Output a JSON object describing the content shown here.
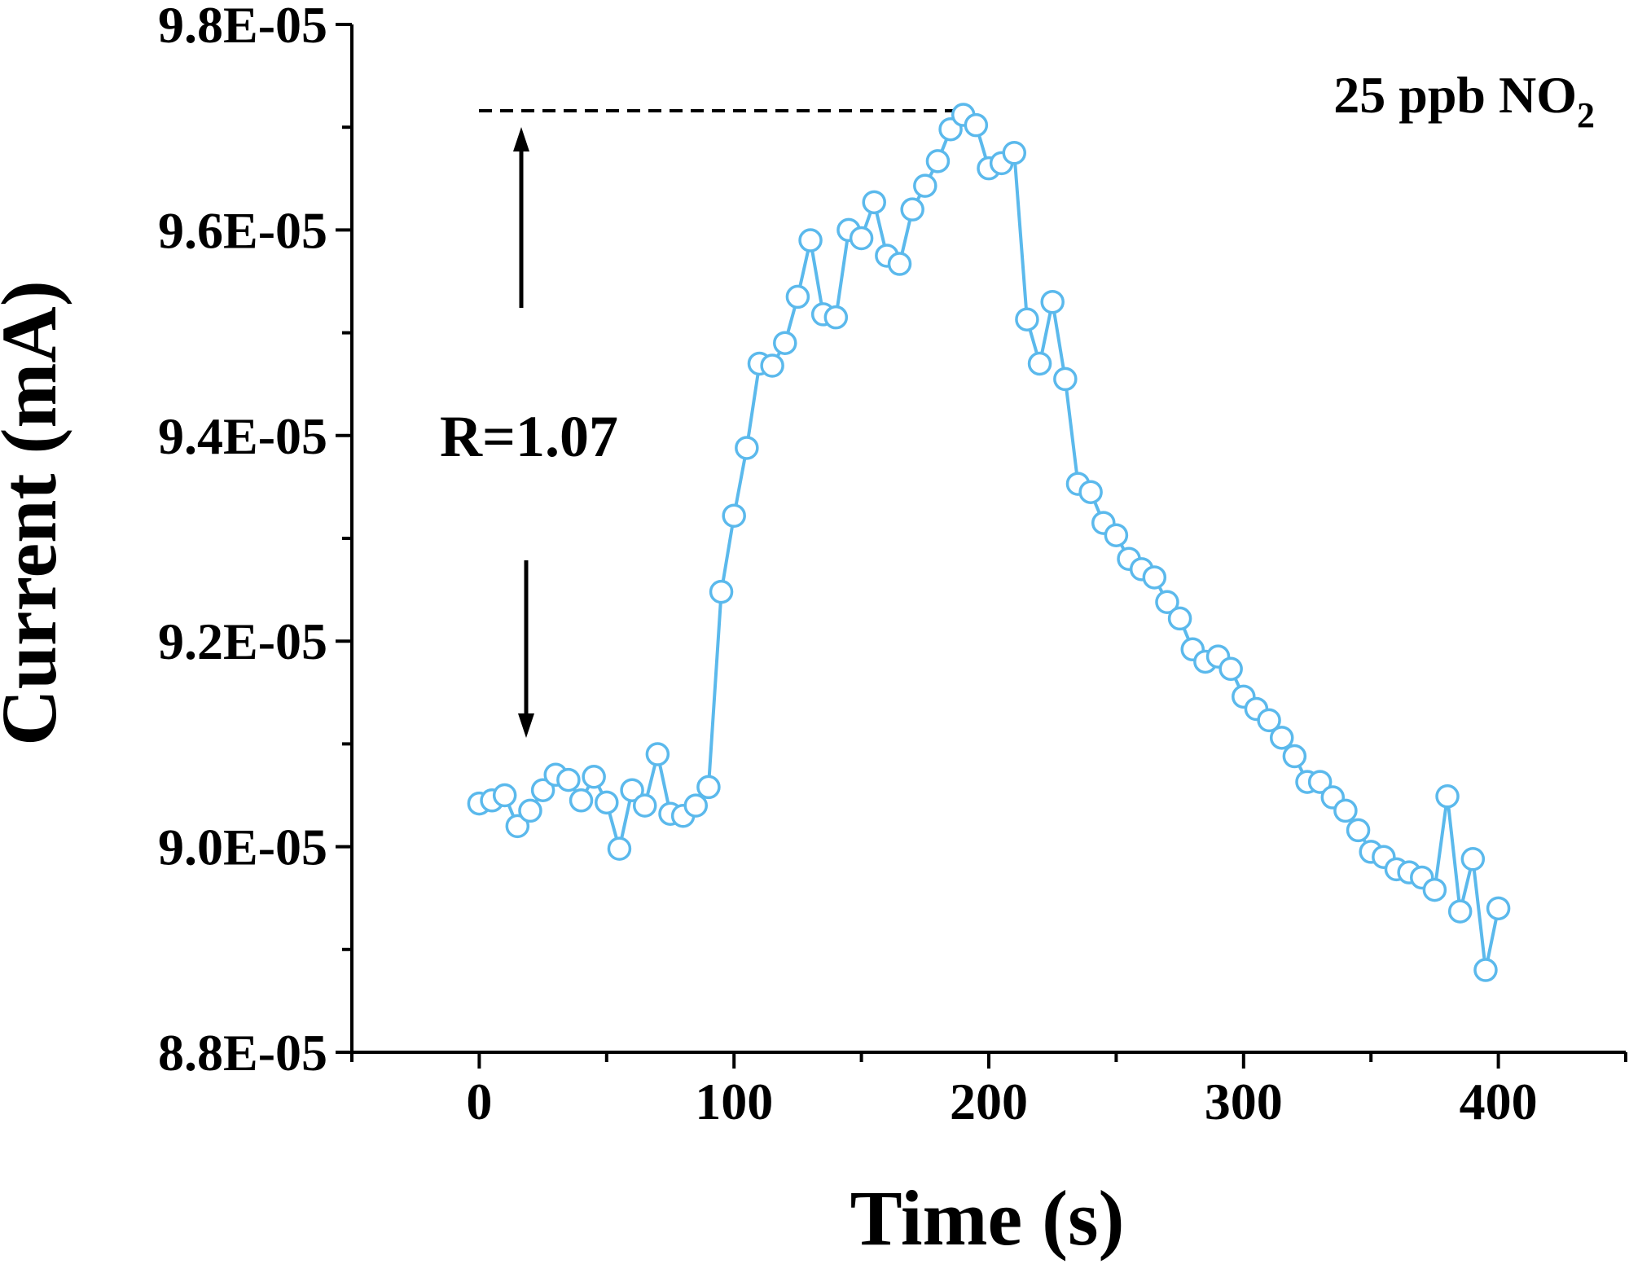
{
  "chart_data": {
    "type": "line",
    "xlabel": "Time (s)",
    "ylabel": "Current (mA)",
    "xlim": [
      -50,
      450
    ],
    "ylim": [
      8.8e-05,
      9.8e-05
    ],
    "x_ticks": [
      0,
      100,
      200,
      300,
      400
    ],
    "x_tick_labels": [
      "0",
      "100",
      "200",
      "300",
      "400"
    ],
    "y_ticks": [
      8.8e-05,
      9e-05,
      9.2e-05,
      9.4e-05,
      9.6e-05,
      9.8e-05
    ],
    "y_tick_labels": [
      "8.8E-05",
      "9.0E-05",
      "9.2E-05",
      "9.4E-05",
      "9.6E-05",
      "9.8E-05"
    ],
    "grid": false,
    "series_color": "#5bb9ec",
    "marker": "open-circle",
    "series": [
      {
        "x": [
          0,
          5,
          10,
          15,
          20,
          25,
          30,
          35,
          40,
          45,
          50,
          55,
          60,
          65,
          70,
          75,
          80,
          85,
          90,
          95,
          100,
          105,
          110,
          115,
          120,
          125,
          130,
          135,
          140,
          145,
          150,
          155,
          160,
          165,
          170,
          175,
          180,
          185,
          190,
          195,
          200,
          205,
          210,
          215,
          220,
          225,
          230,
          235,
          240,
          245,
          250,
          255,
          260,
          265,
          270,
          275,
          280,
          285,
          290,
          295,
          300,
          305,
          310,
          315,
          320,
          325,
          330,
          335,
          340,
          345,
          350,
          355,
          360,
          365,
          370,
          375,
          380,
          385,
          390,
          395,
          400
        ],
        "y": [
          9.042e-05,
          9.045e-05,
          9.05e-05,
          9.02e-05,
          9.035e-05,
          9.055e-05,
          9.07e-05,
          9.065e-05,
          9.045e-05,
          9.068e-05,
          9.043e-05,
          8.998e-05,
          9.055e-05,
          9.04e-05,
          9.09e-05,
          9.032e-05,
          9.03e-05,
          9.04e-05,
          9.058e-05,
          9.248e-05,
          9.322e-05,
          9.388e-05,
          9.47e-05,
          9.468e-05,
          9.49e-05,
          9.535e-05,
          9.59e-05,
          9.518e-05,
          9.515e-05,
          9.6e-05,
          9.592e-05,
          9.627e-05,
          9.575e-05,
          9.567e-05,
          9.62e-05,
          9.643e-05,
          9.667e-05,
          9.698e-05,
          9.712e-05,
          9.702e-05,
          9.66e-05,
          9.665e-05,
          9.675e-05,
          9.513e-05,
          9.47e-05,
          9.53e-05,
          9.455e-05,
          9.353e-05,
          9.345e-05,
          9.315e-05,
          9.303e-05,
          9.28e-05,
          9.27e-05,
          9.262e-05,
          9.238e-05,
          9.222e-05,
          9.192e-05,
          9.18e-05,
          9.185e-05,
          9.173e-05,
          9.146e-05,
          9.134e-05,
          9.123e-05,
          9.106e-05,
          9.088e-05,
          9.063e-05,
          9.063e-05,
          9.048e-05,
          9.035e-05,
          9.016e-05,
          8.995e-05,
          8.99e-05,
          8.978e-05,
          8.975e-05,
          8.97e-05,
          8.958e-05,
          9.049e-05,
          8.937e-05,
          8.988e-05,
          8.88e-05,
          8.94e-05
        ]
      }
    ],
    "annotations": {
      "gas_label_main": "25 ppb NO",
      "gas_label_sub": "2",
      "response_label": "R=1.07",
      "peak_reference_y": 9.716e-05,
      "baseline_reference_y": 9.03e-05
    }
  }
}
